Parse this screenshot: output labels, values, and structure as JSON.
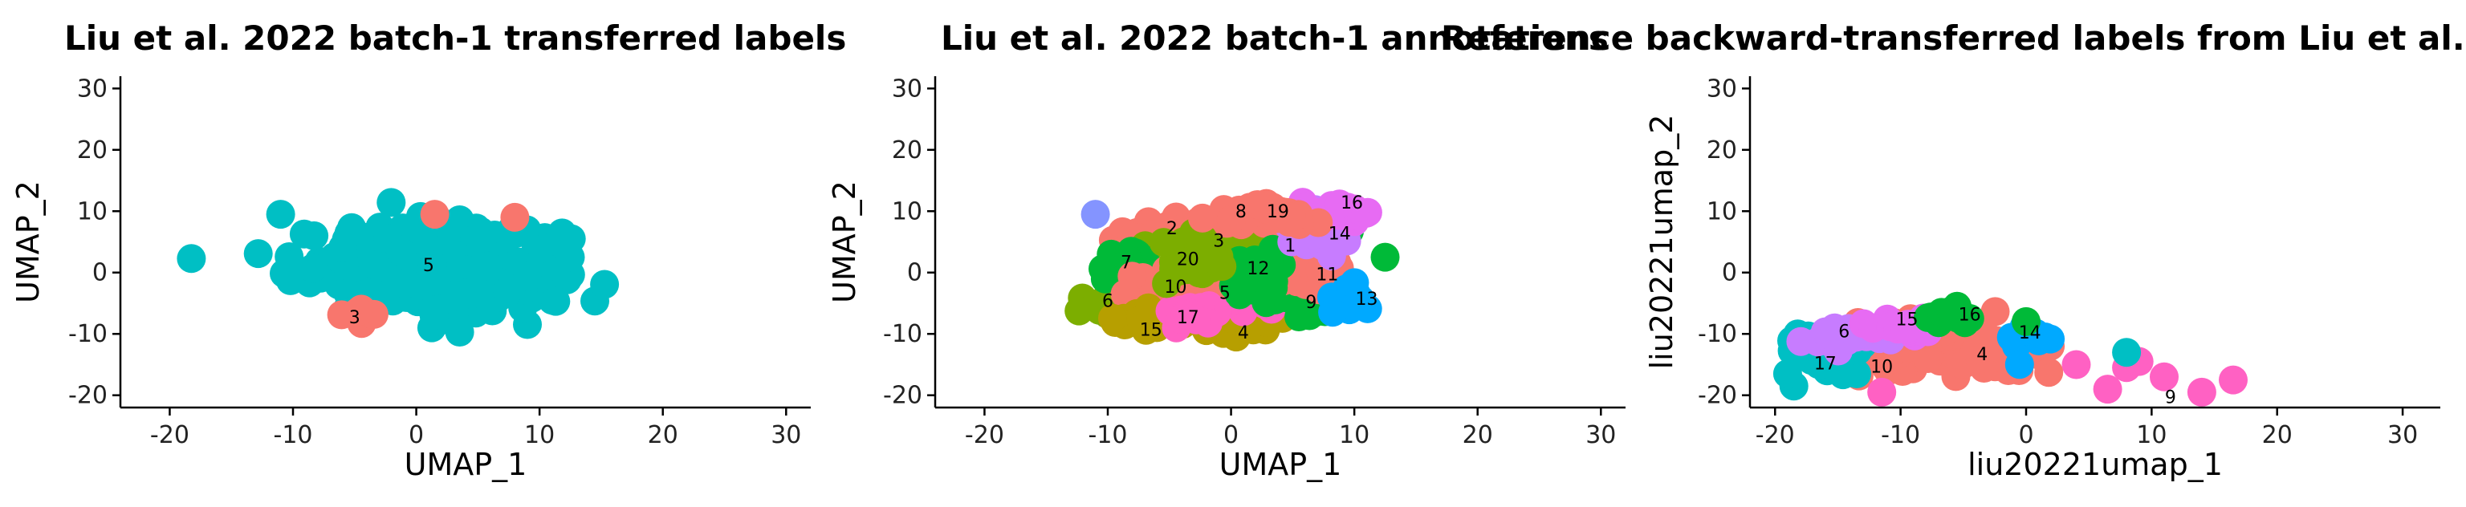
{
  "chart_data": [
    {
      "type": "scatter",
      "title": "Liu et al. 2022 batch-1 transferred labels",
      "xlabel": "UMAP_1",
      "ylabel": "UMAP_2",
      "xlim": [
        -24,
        32
      ],
      "ylim": [
        -22,
        32
      ],
      "xticks": [
        -20,
        -10,
        0,
        10,
        20,
        30
      ],
      "yticks": [
        -20,
        -10,
        0,
        10,
        20,
        30
      ],
      "legend": "none",
      "colors": {
        "5": "#00BFC4",
        "3": "#F8766D"
      },
      "clusters": [
        {
          "label": "5",
          "color": "#00BFC4",
          "cx": 1.0,
          "cy": 1.0,
          "sx": 5.5,
          "sy": 3.5,
          "n": 260
        },
        {
          "label": "3",
          "color": "#F8766D",
          "cx": -4.5,
          "cy": -7.0,
          "sx": 1.0,
          "sy": 0.8,
          "n": 6
        }
      ],
      "points": [
        {
          "x": -11.0,
          "y": 9.5,
          "color": "#00BFC4"
        },
        {
          "x": 12.5,
          "y": 2.5,
          "color": "#00BFC4"
        },
        {
          "x": 1.5,
          "y": 9.5,
          "color": "#F8766D"
        },
        {
          "x": 8.0,
          "y": 9.0,
          "color": "#F8766D"
        }
      ],
      "labels": [
        {
          "text": "5",
          "x": 1.0,
          "y": 1.0
        },
        {
          "text": "3",
          "x": -5.0,
          "y": -7.5
        }
      ]
    },
    {
      "type": "scatter",
      "title": "Liu et al. 2022 batch-1 annotations",
      "xlabel": "UMAP_1",
      "ylabel": "UMAP_2",
      "xlim": [
        -24,
        32
      ],
      "ylim": [
        -22,
        32
      ],
      "xticks": [
        -20,
        -10,
        0,
        10,
        20,
        30
      ],
      "yticks": [
        -20,
        -10,
        0,
        10,
        20,
        30
      ],
      "legend": "none",
      "clusters": [
        {
          "label": "1",
          "color": "#00BA38",
          "cx": 4.5,
          "cy": 4.5,
          "sx": 2.0,
          "sy": 2.0,
          "n": 45
        },
        {
          "label": "2",
          "color": "#F8766D",
          "cx": -4.5,
          "cy": 6.5,
          "sx": 2.0,
          "sy": 1.2,
          "n": 40
        },
        {
          "label": "3",
          "color": "#7CAE00",
          "cx": -1.0,
          "cy": 5.0,
          "sx": 1.8,
          "sy": 1.5,
          "n": 30
        },
        {
          "label": "4",
          "color": "#B79F00",
          "cx": 1.0,
          "cy": -8.0,
          "sx": 2.0,
          "sy": 1.2,
          "n": 35
        },
        {
          "label": "5",
          "color": "#FF61C3",
          "cx": -0.5,
          "cy": -3.5,
          "sx": 2.2,
          "sy": 1.5,
          "n": 35
        },
        {
          "label": "6",
          "color": "#7CAE00",
          "cx": -9.0,
          "cy": -5.0,
          "sx": 1.5,
          "sy": 1.5,
          "n": 35
        },
        {
          "label": "7",
          "color": "#00BA38",
          "cx": -8.5,
          "cy": 1.0,
          "sx": 1.3,
          "sy": 1.3,
          "n": 25
        },
        {
          "label": "8",
          "color": "#F8766D",
          "cx": 1.0,
          "cy": 9.0,
          "sx": 1.5,
          "sy": 1.2,
          "n": 20
        },
        {
          "label": "9",
          "color": "#00BA38",
          "cx": 6.5,
          "cy": -5.0,
          "sx": 1.8,
          "sy": 1.3,
          "n": 30
        },
        {
          "label": "10",
          "color": "#F8766D",
          "cx": -4.0,
          "cy": -2.0,
          "sx": 1.5,
          "sy": 1.5,
          "n": 30
        },
        {
          "label": "11",
          "color": "#F8766D",
          "cx": 7.0,
          "cy": 0.0,
          "sx": 1.5,
          "sy": 1.5,
          "n": 30
        },
        {
          "label": "12",
          "color": "#00BA38",
          "cx": 2.0,
          "cy": 0.0,
          "sx": 1.5,
          "sy": 1.5,
          "n": 25
        },
        {
          "label": "13",
          "color": "#00A9FF",
          "cx": 9.5,
          "cy": -4.0,
          "sx": 0.8,
          "sy": 1.0,
          "n": 15
        },
        {
          "label": "14",
          "color": "#C77CFF",
          "cx": 7.5,
          "cy": 6.5,
          "sx": 1.5,
          "sy": 1.2,
          "n": 25
        },
        {
          "label": "15",
          "color": "#B79F00",
          "cx": -7.0,
          "cy": -7.5,
          "sx": 1.3,
          "sy": 1.0,
          "n": 25
        },
        {
          "label": "16",
          "color": "#E76BF3",
          "cx": 8.0,
          "cy": 10.0,
          "sx": 1.5,
          "sy": 0.8,
          "n": 20
        },
        {
          "label": "17",
          "color": "#FF61C3",
          "cx": -3.5,
          "cy": -7.0,
          "sx": 1.2,
          "sy": 1.0,
          "n": 20
        },
        {
          "label": "19",
          "color": "#F8766D",
          "cx": 4.0,
          "cy": 9.5,
          "sx": 1.2,
          "sy": 1.0,
          "n": 20
        },
        {
          "label": "20",
          "color": "#7CAE00",
          "cx": -3.5,
          "cy": 2.0,
          "sx": 1.5,
          "sy": 1.2,
          "n": 25
        }
      ],
      "points": [
        {
          "x": -11.0,
          "y": 9.5,
          "color": "#8494FF"
        },
        {
          "x": 12.5,
          "y": 2.5,
          "color": "#00BA38"
        }
      ],
      "labels": [
        {
          "text": "16",
          "x": 9.8,
          "y": 11.2
        },
        {
          "text": "8",
          "x": 0.8,
          "y": 9.8
        },
        {
          "text": "19",
          "x": 3.8,
          "y": 9.8
        },
        {
          "text": "14",
          "x": 8.8,
          "y": 6.2
        },
        {
          "text": "2",
          "x": -4.8,
          "y": 7.0
        },
        {
          "text": "3",
          "x": -1.0,
          "y": 5.0
        },
        {
          "text": "1",
          "x": 4.8,
          "y": 4.2
        },
        {
          "text": "7",
          "x": -8.5,
          "y": 1.5
        },
        {
          "text": "20",
          "x": -3.5,
          "y": 2.0
        },
        {
          "text": "12",
          "x": 2.2,
          "y": 0.5
        },
        {
          "text": "11",
          "x": 7.8,
          "y": -0.5
        },
        {
          "text": "10",
          "x": -4.5,
          "y": -2.5
        },
        {
          "text": "5",
          "x": -0.5,
          "y": -3.5
        },
        {
          "text": "9",
          "x": 6.5,
          "y": -5.0
        },
        {
          "text": "13",
          "x": 11.0,
          "y": -4.5
        },
        {
          "text": "6",
          "x": -10.0,
          "y": -4.8
        },
        {
          "text": "17",
          "x": -3.5,
          "y": -7.5
        },
        {
          "text": "15",
          "x": -6.5,
          "y": -9.5
        },
        {
          "text": "4",
          "x": 1.0,
          "y": -10.0
        }
      ]
    },
    {
      "type": "scatter",
      "title": "Reference backward-transferred labels from Liu et al.",
      "xlabel": "liu20221umap_1",
      "ylabel": "liu20221umap_2",
      "xlim": [
        -22,
        33
      ],
      "ylim": [
        -22,
        32
      ],
      "xticks": [
        -20,
        -10,
        0,
        10,
        20,
        30
      ],
      "yticks": [
        -20,
        -10,
        0,
        10,
        20,
        30
      ],
      "legend": "none",
      "clusters": [
        {
          "label": "10",
          "color": "#F8766D",
          "cx": -9.0,
          "cy": -12.0,
          "sx": 3.5,
          "sy": 2.2,
          "n": 120
        },
        {
          "label": "4",
          "color": "#F8766D",
          "cx": -3.0,
          "cy": -13.0,
          "sx": 2.5,
          "sy": 1.8,
          "n": 60
        },
        {
          "label": "17",
          "color": "#00BFC4",
          "cx": -16.0,
          "cy": -13.5,
          "sx": 1.5,
          "sy": 1.8,
          "n": 40
        },
        {
          "label": "6",
          "color": "#C77CFF",
          "cx": -14.0,
          "cy": -10.5,
          "sx": 1.5,
          "sy": 1.0,
          "n": 25
        },
        {
          "label": "15",
          "color": "#E76BF3",
          "cx": -9.5,
          "cy": -9.0,
          "sx": 1.5,
          "sy": 0.8,
          "n": 20
        },
        {
          "label": "16",
          "color": "#00BA38",
          "cx": -6.0,
          "cy": -7.0,
          "sx": 1.2,
          "sy": 0.8,
          "n": 12
        },
        {
          "label": "14",
          "color": "#00A9FF",
          "cx": 0.5,
          "cy": -11.0,
          "sx": 1.0,
          "sy": 1.2,
          "n": 10
        }
      ],
      "points": [
        {
          "x": -18.5,
          "y": -18.5,
          "color": "#00BFC4"
        },
        {
          "x": -19.0,
          "y": -16.5,
          "color": "#00BFC4"
        },
        {
          "x": -11.5,
          "y": -19.5,
          "color": "#FF61C3"
        },
        {
          "x": 4.0,
          "y": -15.0,
          "color": "#FF61C3"
        },
        {
          "x": 6.5,
          "y": -19.0,
          "color": "#FF61C3"
        },
        {
          "x": 8.0,
          "y": -15.5,
          "color": "#FF61C3"
        },
        {
          "x": 9.0,
          "y": -14.5,
          "color": "#FF61C3"
        },
        {
          "x": 11.0,
          "y": -17.0,
          "color": "#FF61C3"
        },
        {
          "x": 14.0,
          "y": -19.5,
          "color": "#FF61C3"
        },
        {
          "x": 16.5,
          "y": -17.5,
          "color": "#FF61C3"
        },
        {
          "x": 8.0,
          "y": -13.0,
          "color": "#00BFC4"
        },
        {
          "x": 1.5,
          "y": -10.5,
          "color": "#00A9FF"
        },
        {
          "x": 0.0,
          "y": -8.0,
          "color": "#00BA38"
        },
        {
          "x": -5.5,
          "y": -5.5,
          "color": "#00BA38"
        }
      ],
      "labels": [
        {
          "text": "6",
          "x": -14.5,
          "y": -9.8
        },
        {
          "text": "15",
          "x": -9.5,
          "y": -7.8
        },
        {
          "text": "16",
          "x": -4.5,
          "y": -7.0
        },
        {
          "text": "14",
          "x": 0.3,
          "y": -10.0
        },
        {
          "text": "17",
          "x": -16.0,
          "y": -15.0
        },
        {
          "text": "10",
          "x": -11.5,
          "y": -15.5
        },
        {
          "text": "4",
          "x": -3.5,
          "y": -13.5
        },
        {
          "text": "9",
          "x": 11.5,
          "y": -20.5
        }
      ]
    }
  ]
}
